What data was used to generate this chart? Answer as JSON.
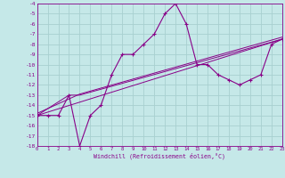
{
  "xlabel": "Windchill (Refroidissement éolien,°C)",
  "xlim": [
    0,
    23
  ],
  "ylim": [
    -18,
    -4
  ],
  "xtick_vals": [
    0,
    1,
    2,
    3,
    4,
    5,
    6,
    7,
    8,
    9,
    10,
    11,
    12,
    13,
    14,
    15,
    16,
    17,
    18,
    19,
    20,
    21,
    22,
    23
  ],
  "ytick_vals": [
    -18,
    -17,
    -16,
    -15,
    -14,
    -13,
    -12,
    -11,
    -10,
    -9,
    -8,
    -7,
    -6,
    -5,
    -4
  ],
  "bg": "#c5e8e8",
  "grid_color": "#a8d0d0",
  "lc": "#880088",
  "series_main_x": [
    0,
    1,
    2,
    3,
    4,
    5,
    6,
    7,
    8,
    9,
    10,
    11,
    12,
    13,
    14,
    15,
    16,
    17,
    18,
    19,
    20,
    21,
    22,
    23
  ],
  "series_main_y": [
    -15,
    -15,
    -15,
    -13,
    -18,
    -15,
    -14,
    -11,
    -9,
    -9,
    -8,
    -7,
    -5,
    -4,
    -6,
    -10,
    -10,
    -11,
    -11.5,
    -12,
    -11.5,
    -11,
    -8,
    -7.5
  ],
  "aux_lines": [
    {
      "x": [
        0,
        3,
        4,
        23
      ],
      "y": [
        -15,
        -13,
        -13,
        -7.5
      ]
    },
    {
      "x": [
        0,
        23
      ],
      "y": [
        -15,
        -7.5
      ]
    },
    {
      "x": [
        0,
        4,
        23
      ],
      "y": [
        -14.8,
        -12.9,
        -7.3
      ]
    }
  ]
}
